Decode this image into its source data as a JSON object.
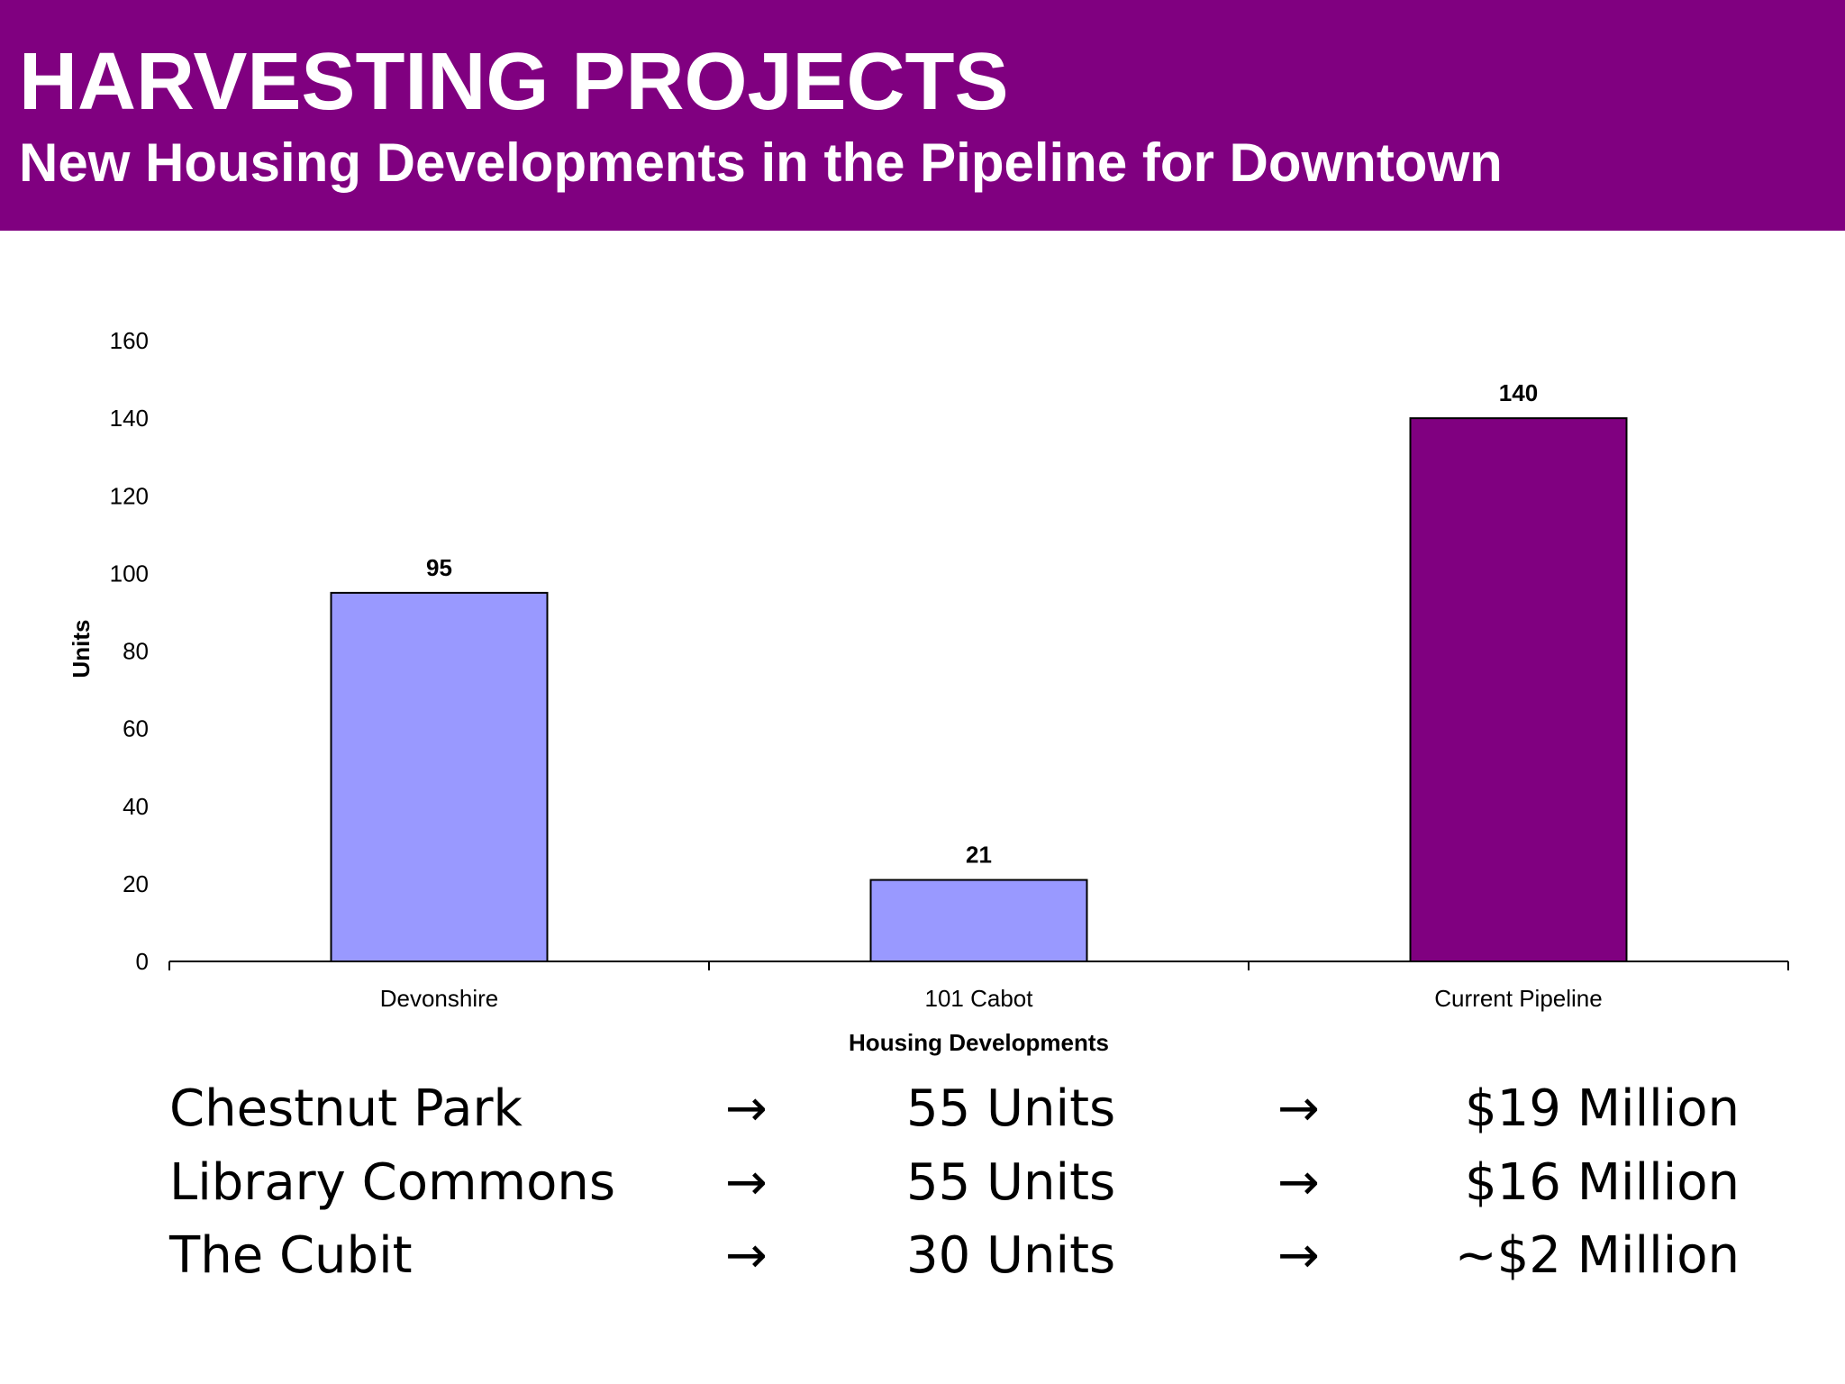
{
  "header": {
    "title": "HARVESTING PROJECTS",
    "subtitle": "New Housing Developments in the Pipeline for Downtown"
  },
  "chart_data": {
    "type": "bar",
    "categories": [
      "Devonshire",
      "101 Cabot",
      "Current Pipeline"
    ],
    "values": [
      95,
      21,
      140
    ],
    "data_labels": [
      "95",
      "21",
      "140"
    ],
    "bar_colors": [
      "#9999ff",
      "#9999ff",
      "#800080"
    ],
    "xlabel": "Housing Developments",
    "ylabel": "Units",
    "ylim": [
      0,
      160
    ],
    "yticks": [
      0,
      20,
      40,
      60,
      80,
      100,
      120,
      140,
      160
    ],
    "grid": false,
    "legend": "none"
  },
  "summary": {
    "arrow": "→",
    "rows": [
      {
        "name": "Chestnut Park",
        "units": "55 Units",
        "amount": "$19 Million"
      },
      {
        "name": "Library Commons",
        "units": "55 Units",
        "amount": "$16 Million"
      },
      {
        "name": "The Cubit",
        "units": "30 Units",
        "amount": "~$2 Million"
      }
    ]
  },
  "colors": {
    "header_bg": "#800080",
    "header_text": "#ffffff",
    "bar_default": "#9999ff",
    "bar_highlight": "#800080"
  }
}
